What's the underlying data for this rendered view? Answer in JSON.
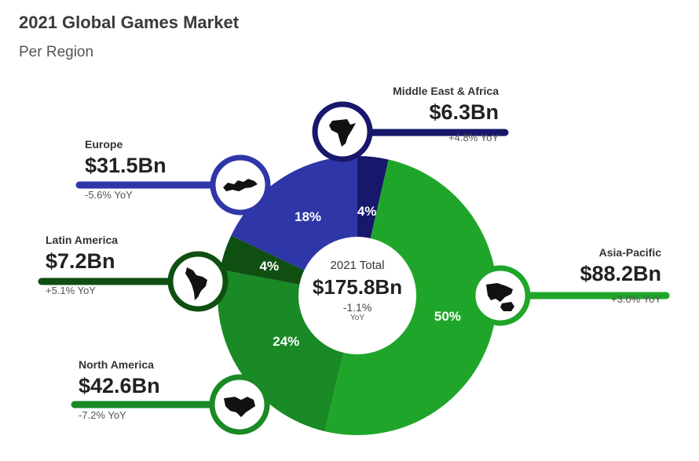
{
  "header": {
    "title": "2021 Global Games Market",
    "subtitle": "Per Region"
  },
  "center": {
    "label": "2021 Total",
    "total": "$175.8Bn",
    "change": "-1.1%",
    "change_unit": "YoY"
  },
  "icons": [
    "africa-icon",
    "europe-icon",
    "latin-america-icon",
    "north-america-icon",
    "asia-pacific-icon"
  ],
  "colors": {
    "asia_pacific": "#1fa62a",
    "north_america": "#198a25",
    "latin_america": "#0f4f12",
    "europe": "#2f36a8",
    "middle_east_africa": "#17176b"
  },
  "chart_data": {
    "type": "pie",
    "style": "donut",
    "total_label": "2021 Total",
    "total": 175.8,
    "slices": [
      {
        "name": "Middle East & Africa",
        "value": 6.3,
        "value_label": "$6.3Bn",
        "percent": 4,
        "percent_label": "4%",
        "yoy": "+4.8% YoY",
        "color": "#17176b"
      },
      {
        "name": "Asia-Pacific",
        "value": 88.2,
        "value_label": "$88.2Bn",
        "percent": 50,
        "percent_label": "50%",
        "yoy": "+3.0% YoY",
        "color": "#1fa62a"
      },
      {
        "name": "North America",
        "value": 42.6,
        "value_label": "$42.6Bn",
        "percent": 24,
        "percent_label": "24%",
        "yoy": "-7.2% YoY",
        "color": "#198a25"
      },
      {
        "name": "Latin America",
        "value": 7.2,
        "value_label": "$7.2Bn",
        "percent": 4,
        "percent_label": "4%",
        "yoy": "+5.1% YoY",
        "color": "#0f4f12"
      },
      {
        "name": "Europe",
        "value": 31.5,
        "value_label": "$31.5Bn",
        "percent": 18,
        "percent_label": "18%",
        "yoy": "-5.6% YoY",
        "color": "#2f36a8"
      }
    ]
  }
}
